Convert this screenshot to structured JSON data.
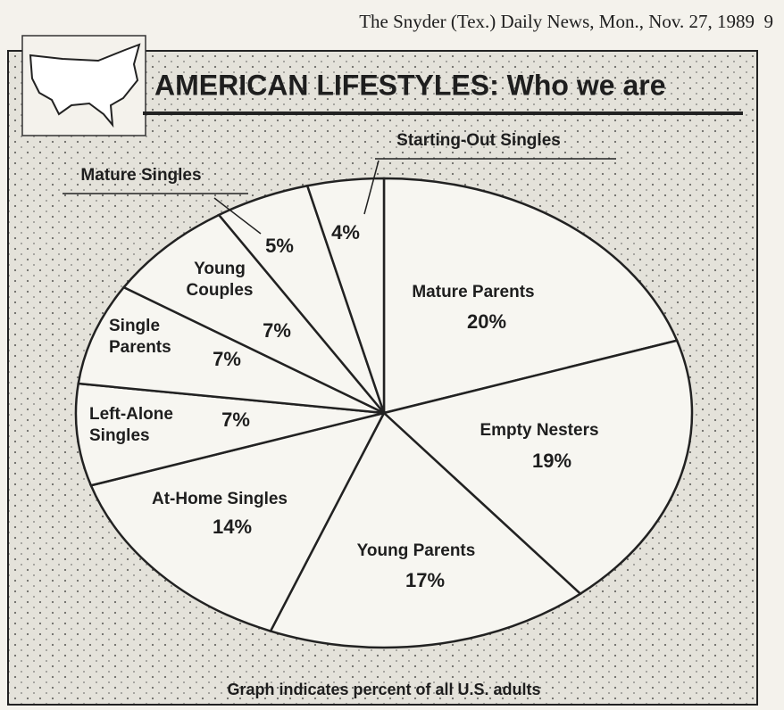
{
  "header": {
    "masthead": "The Snyder (Tex.) Daily News, Mon., Nov. 27, 1989",
    "page": "9"
  },
  "chart_data": {
    "type": "pie",
    "title": "AMERICAN LIFESTYLES: Who we are",
    "note": "Graph indicates percent of all U.S. adults",
    "categories": [
      "Mature Parents",
      "Empty Nesters",
      "Young Parents",
      "At-Home Singles",
      "Left-Alone Singles",
      "Single Parents",
      "Young Couples",
      "Mature Singles",
      "Starting-Out Singles"
    ],
    "values": [
      20,
      19,
      17,
      14,
      7,
      7,
      7,
      5,
      4
    ],
    "value_labels": [
      "20%",
      "19%",
      "17%",
      "14%",
      "7%",
      "7%",
      "7%",
      "5%",
      "4%"
    ],
    "color": "#f7f6f1"
  }
}
